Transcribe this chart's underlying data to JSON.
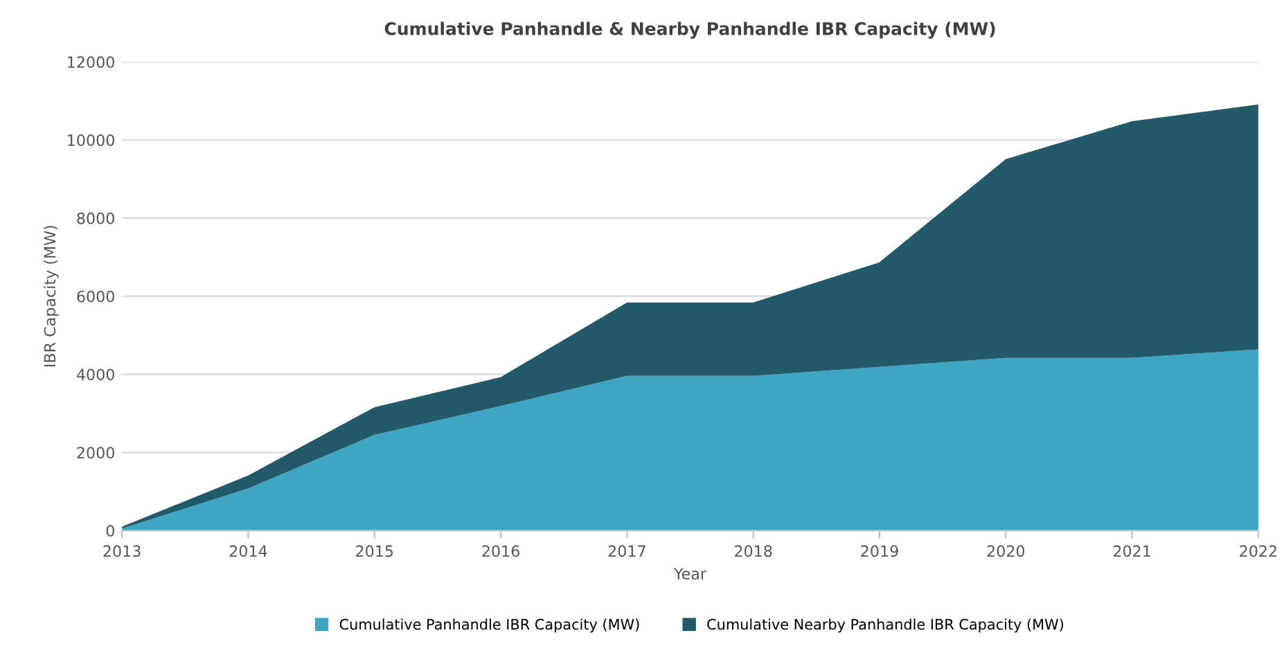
{
  "chart_data": {
    "type": "area",
    "stacked": true,
    "title": "Cumulative Panhandle & Nearby Panhandle IBR Capacity (MW)",
    "xlabel": "Year",
    "ylabel": "IBR Capacity (MW)",
    "categories": [
      "2013",
      "2014",
      "2015",
      "2016",
      "2017",
      "2018",
      "2019",
      "2020",
      "2021",
      "2022"
    ],
    "series": [
      {
        "name": "Cumulative Panhandle IBR Capacity (MW)",
        "color": "#3ea5c3",
        "values": [
          50,
          1080,
          2450,
          3190,
          3960,
          3960,
          4190,
          4420,
          4420,
          4640
        ]
      },
      {
        "name": "Cumulative Nearby Panhandle IBR Capacity (MW)",
        "color": "#225a69",
        "values": [
          50,
          330,
          710,
          740,
          1880,
          1880,
          2680,
          5090,
          6060,
          6270
        ]
      }
    ],
    "ylim": [
      0,
      12000
    ],
    "yticks": [
      0,
      2000,
      4000,
      6000,
      8000,
      10000,
      12000
    ],
    "grid": "y",
    "legend": "bottom"
  }
}
